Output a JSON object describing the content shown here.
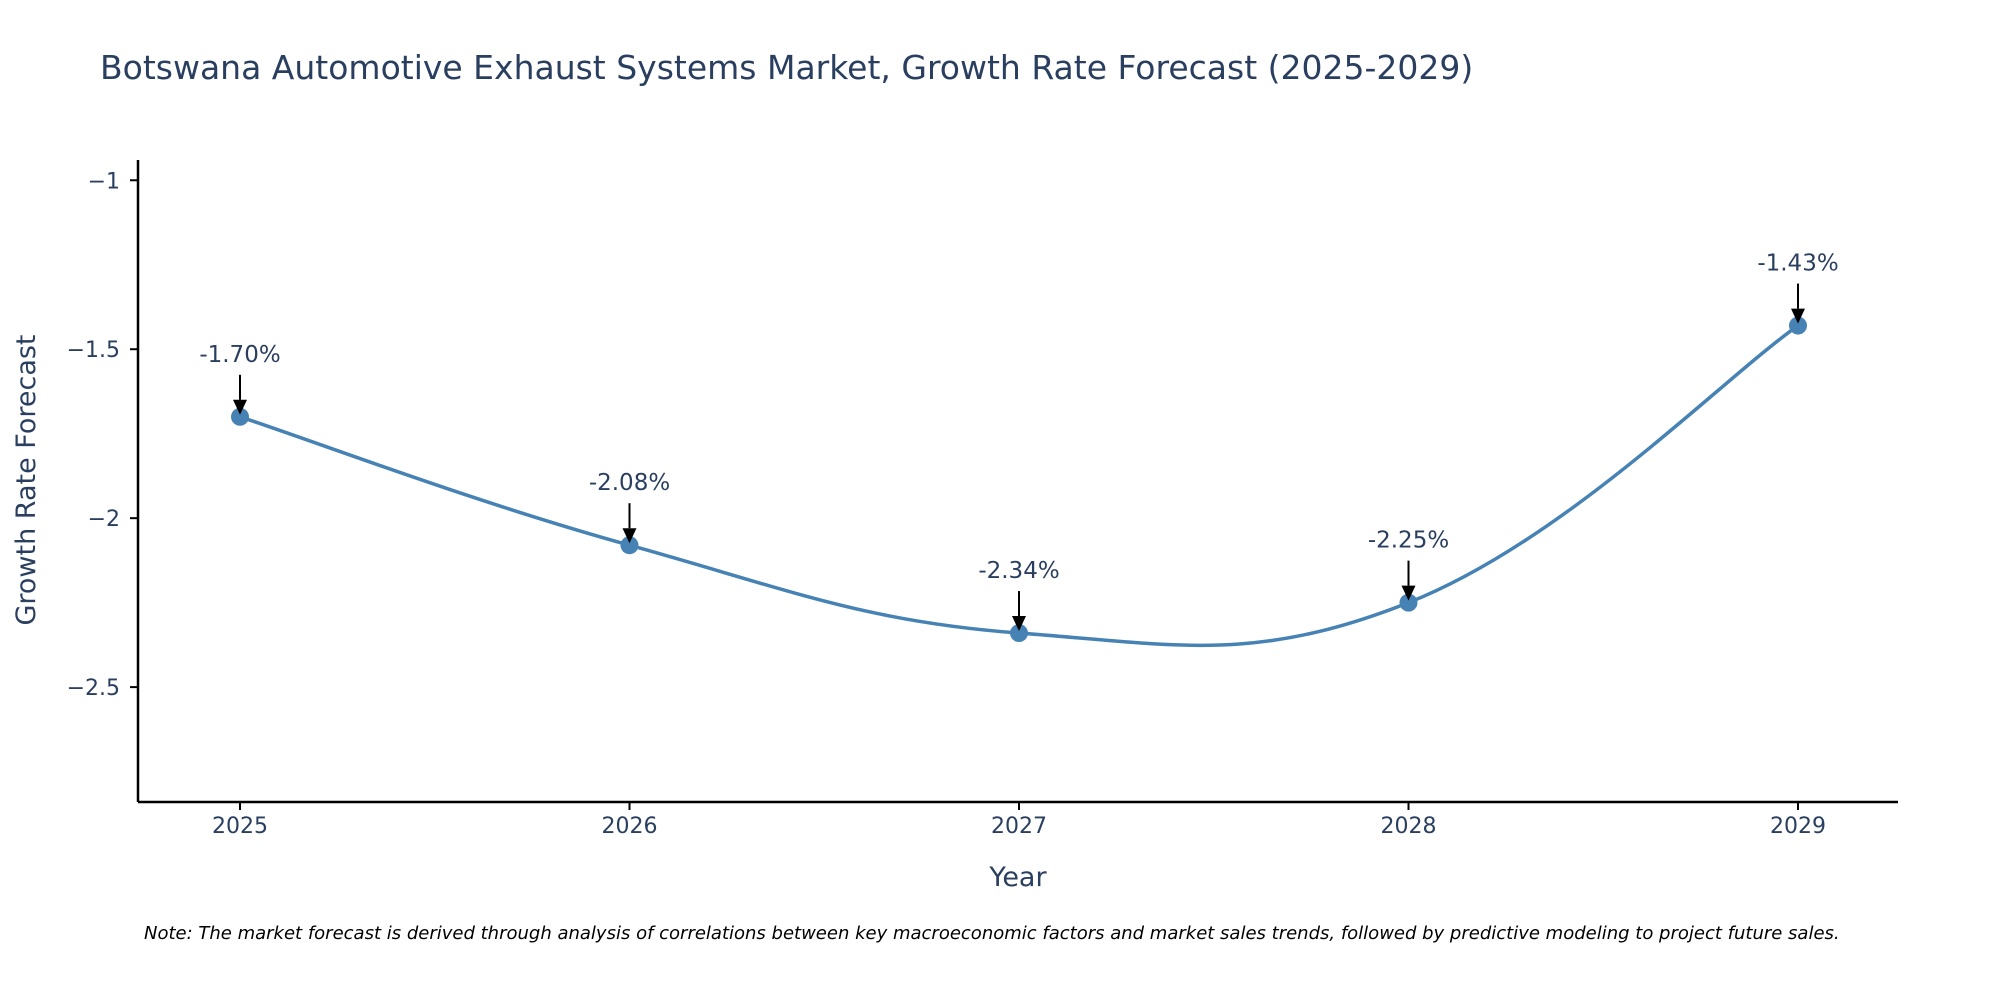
{
  "chart_data": {
    "type": "line",
    "title": "Botswana Automotive Exhaust Systems Market, Growth Rate Forecast (2025-2029)",
    "xlabel": "Year",
    "ylabel": "Growth Rate Forecast",
    "categories": [
      "2025",
      "2026",
      "2027",
      "2028",
      "2029"
    ],
    "series": [
      {
        "name": "Growth Rate Forecast",
        "values": [
          -1.7,
          -2.08,
          -2.34,
          -2.25,
          -1.43
        ],
        "labels": [
          "-1.70%",
          "-2.08%",
          "-2.34%",
          "-2.25%",
          "-1.43%"
        ]
      }
    ],
    "ylim": [
      -2.84,
      -0.94
    ],
    "yticks": [
      -1,
      -1.5,
      -2,
      -2.5
    ],
    "ytick_labels": [
      "−1",
      "−1.5",
      "−2",
      "−2.5"
    ],
    "grid": false,
    "legend": "none",
    "colors": {
      "line": "#4682b4",
      "text": "#2a3f5f",
      "axis": "#000000"
    },
    "note": "Note: The market forecast is derived through analysis of correlations between key macroeconomic factors and market sales trends, followed by predictive modeling to project future sales."
  }
}
